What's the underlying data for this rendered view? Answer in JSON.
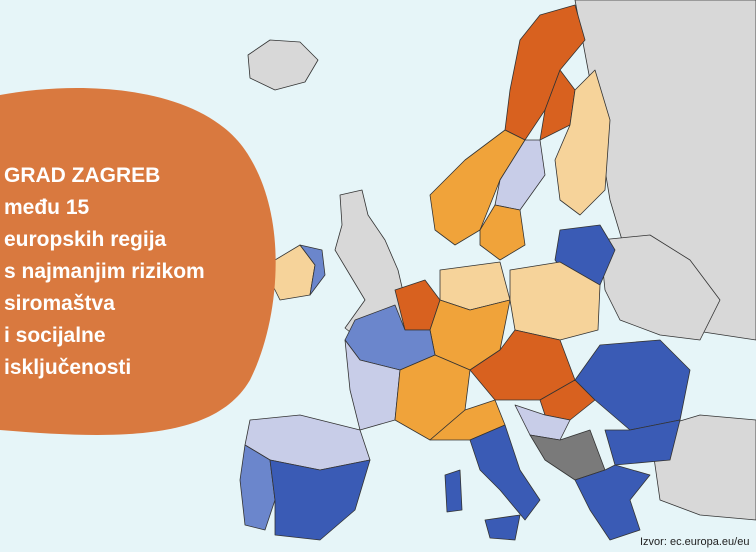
{
  "headline": {
    "lines": [
      "GRAD ZAGREB",
      "među 15",
      "europskih regija",
      "s najmanjim rizikom",
      "siromaštva",
      "i socijalne",
      "isključenosti"
    ]
  },
  "source": "Izvor: ec.europa.eu/eu"
}
